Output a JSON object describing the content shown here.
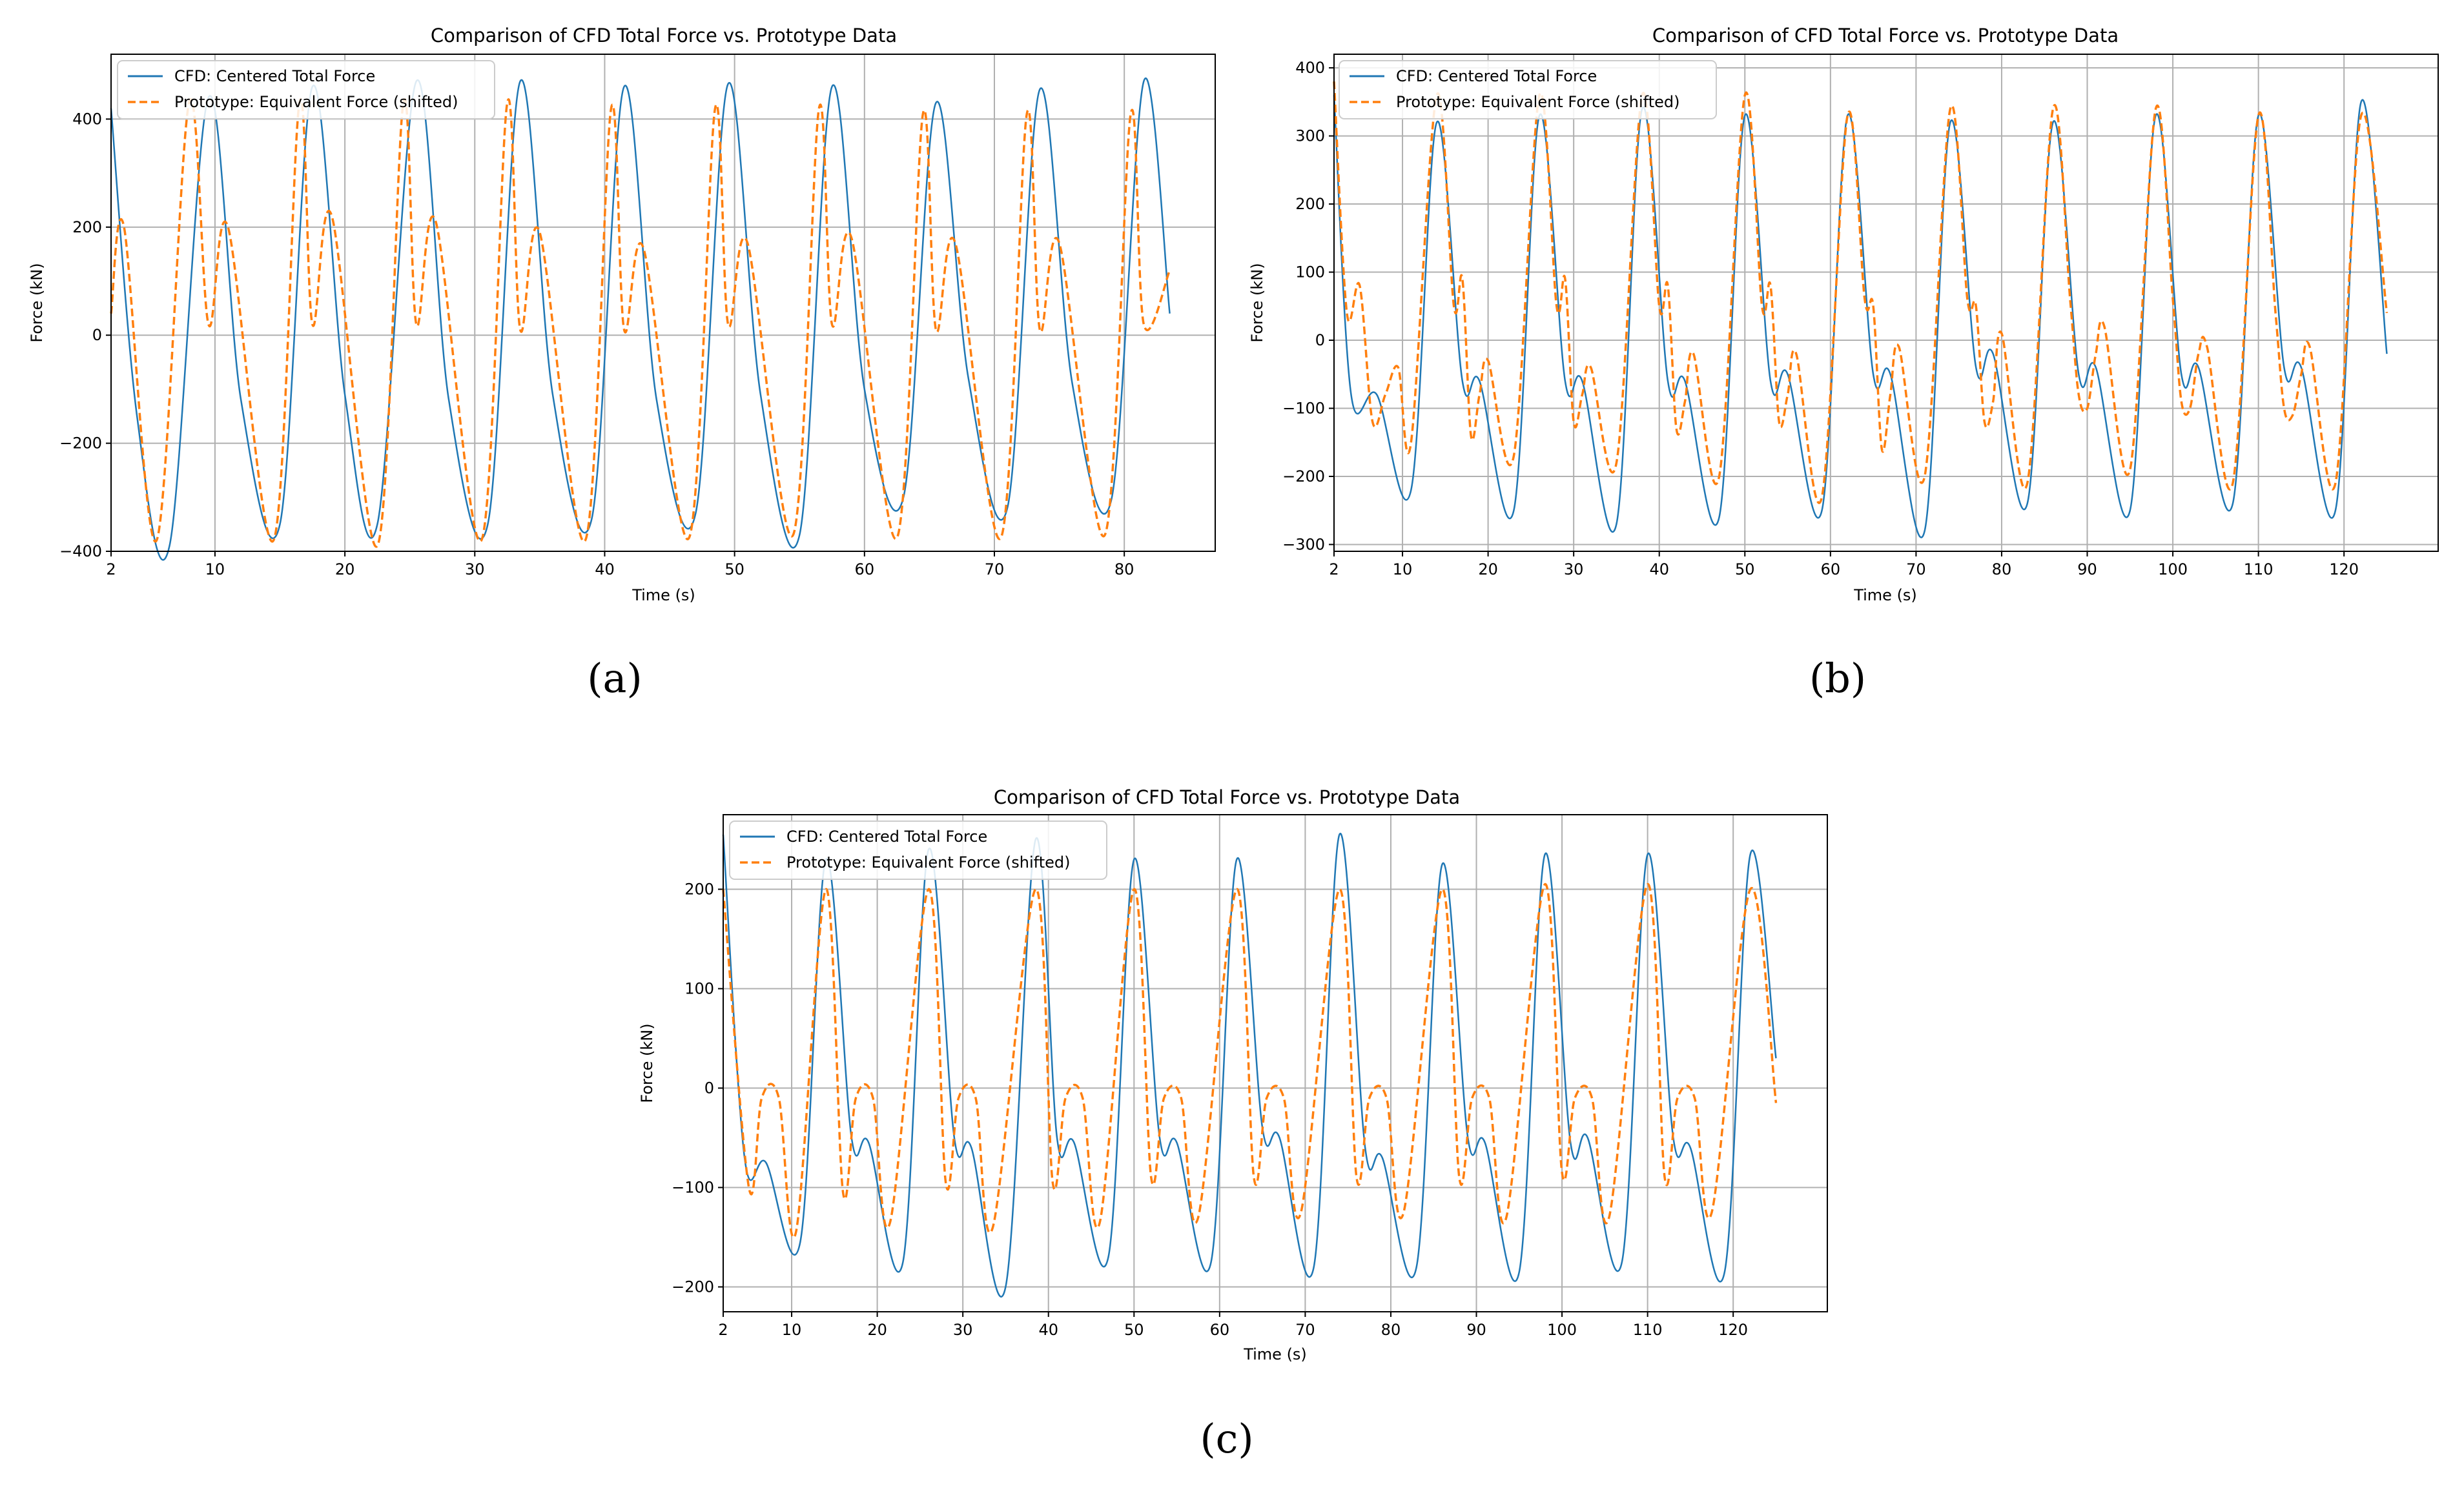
{
  "figure": {
    "captions": [
      "(a)",
      "(b)",
      "(c)"
    ]
  },
  "colors": {
    "cfd": "#1f77b4",
    "prototype": "#ff7f0e",
    "grid": "#b0b0b0"
  },
  "chart_data": [
    {
      "id": "a",
      "type": "line",
      "title": "Comparison of CFD Total Force vs. Prototype Data",
      "xlabel": "Time (s)",
      "ylabel": "Force (kN)",
      "xlim": [
        2,
        87
      ],
      "ylim": [
        -400,
        520
      ],
      "xticks": [
        2,
        10,
        20,
        30,
        40,
        50,
        60,
        70,
        80
      ],
      "yticks": [
        -400,
        -200,
        0,
        200,
        400
      ],
      "grid": true,
      "legend_position": "upper-left",
      "series": [
        {
          "name": "CFD: Centered Total Force",
          "style": "solid",
          "x": [
            2,
            4,
            6.5,
            9.5,
            12,
            15,
            17.5,
            20,
            22.5,
            25.5,
            28,
            31,
            33.5,
            36,
            39,
            41.5,
            44,
            47,
            49.5,
            52,
            55,
            57.5,
            60,
            63,
            65.5,
            68,
            71,
            73.5,
            76,
            79,
            81.5,
            83.5
          ],
          "values": [
            420,
            -150,
            -390,
            440,
            -120,
            -350,
            460,
            -110,
            -350,
            470,
            -120,
            -350,
            470,
            -110,
            -340,
            460,
            -120,
            -330,
            465,
            -110,
            -370,
            460,
            -100,
            -300,
            430,
            -80,
            -320,
            455,
            -90,
            -305,
            470,
            40
          ]
        },
        {
          "name": "Prototype: Equivalent Force (shifted)",
          "style": "dashed",
          "x": [
            2,
            3,
            5.5,
            8,
            9.5,
            11,
            14.5,
            16.5,
            17.5,
            19,
            22.5,
            24.5,
            25.5,
            27,
            30.5,
            32.5,
            33.5,
            35,
            38.5,
            40.5,
            41.5,
            43,
            46.5,
            48.5,
            49.5,
            51,
            54.5,
            56.5,
            57.5,
            59,
            62.5,
            64.5,
            65.5,
            67,
            70.5,
            72.5,
            73.5,
            75,
            78.5,
            80.5,
            81.5,
            83.5
          ],
          "values": [
            40,
            200,
            -380,
            430,
            20,
            200,
            -380,
            430,
            20,
            220,
            -390,
            430,
            20,
            210,
            -380,
            430,
            10,
            190,
            -380,
            420,
            10,
            160,
            -375,
            420,
            20,
            170,
            -370,
            420,
            20,
            180,
            -375,
            410,
            10,
            170,
            -375,
            410,
            10,
            170,
            -370,
            410,
            20,
            120
          ]
        }
      ]
    },
    {
      "id": "b",
      "type": "line",
      "title": "Comparison of CFD Total Force vs. Prototype Data",
      "xlabel": "Time (s)",
      "ylabel": "Force (kN)",
      "xlim": [
        2,
        131
      ],
      "ylim": [
        -310,
        420
      ],
      "xticks": [
        2,
        10,
        20,
        30,
        40,
        50,
        60,
        70,
        80,
        90,
        100,
        110,
        120
      ],
      "yticks": [
        -300,
        -200,
        -100,
        0,
        100,
        200,
        300,
        400
      ],
      "grid": true,
      "legend_position": "upper-left",
      "series": [
        {
          "name": "CFD: Centered Total Force",
          "style": "solid",
          "x": [
            2,
            4,
            7,
            11,
            14,
            17,
            19,
            23,
            26,
            29,
            31,
            35,
            38,
            41,
            43,
            47,
            50,
            53,
            55,
            59,
            62,
            65,
            67,
            71,
            74,
            77,
            79,
            83,
            86,
            89,
            91,
            95,
            98,
            101,
            103,
            107,
            110,
            113,
            115,
            119,
            122,
            125
          ],
          "values": [
            360,
            -80,
            -80,
            -220,
            320,
            -60,
            -60,
            -250,
            330,
            -60,
            -60,
            -270,
            340,
            -60,
            -60,
            -260,
            330,
            -60,
            -50,
            -250,
            330,
            -50,
            -50,
            -280,
            320,
            -40,
            -20,
            -240,
            320,
            -50,
            -40,
            -250,
            330,
            -50,
            -40,
            -240,
            330,
            -40,
            -40,
            -250,
            350,
            -20
          ]
        },
        {
          "name": "Prototype: Equivalent Force (shifted)",
          "style": "dashed",
          "x": [
            2,
            3.5,
            5,
            6.5,
            8,
            9.5,
            11,
            14,
            16,
            17,
            18,
            19,
            20,
            23,
            26,
            28,
            29,
            30,
            31,
            32,
            35,
            38,
            40,
            41,
            42,
            43,
            44,
            47,
            50,
            52,
            53,
            54,
            55,
            56,
            59,
            62,
            64,
            65,
            66,
            67,
            68,
            71,
            74,
            76,
            77,
            78,
            79,
            80,
            83,
            86,
            88,
            89,
            90,
            91,
            92,
            95,
            98,
            100,
            101,
            102,
            103,
            104,
            107,
            110,
            112,
            113,
            114,
            115,
            116,
            119,
            122,
            125
          ],
          "values": [
            380,
            40,
            80,
            -120,
            -80,
            -40,
            -150,
            360,
            50,
            90,
            -140,
            -80,
            -30,
            -170,
            360,
            50,
            90,
            -120,
            -80,
            -40,
            -180,
            360,
            50,
            80,
            -130,
            -90,
            -20,
            -200,
            360,
            50,
            80,
            -120,
            -80,
            -20,
            -230,
            330,
            60,
            50,
            -160,
            -80,
            -10,
            -200,
            340,
            60,
            50,
            -120,
            -90,
            10,
            -210,
            340,
            60,
            -80,
            -100,
            -20,
            20,
            -190,
            340,
            60,
            -90,
            -100,
            -20,
            -10,
            -210,
            330,
            40,
            -100,
            -110,
            -50,
            -10,
            -210,
            330,
            40
          ]
        }
      ]
    },
    {
      "id": "c",
      "type": "line",
      "title": "Comparison of CFD Total Force vs. Prototype Data",
      "xlabel": "Time (s)",
      "ylabel": "Force (kN)",
      "xlim": [
        2,
        131
      ],
      "ylim": [
        -225,
        275
      ],
      "xticks": [
        2,
        10,
        20,
        30,
        40,
        50,
        60,
        70,
        80,
        90,
        100,
        110,
        120
      ],
      "yticks": [
        -200,
        -100,
        0,
        100,
        200
      ],
      "grid": true,
      "legend_position": "upper-left",
      "series": [
        {
          "name": "CFD: Centered Total Force",
          "style": "solid",
          "x": [
            2,
            4.5,
            7,
            11,
            14,
            17,
            19,
            23,
            26,
            29,
            31,
            35,
            38.5,
            41,
            43,
            47,
            50,
            53,
            55,
            59,
            62,
            65,
            67,
            71,
            74,
            77,
            79,
            83,
            86,
            89,
            91,
            95,
            98,
            101,
            103,
            107,
            110,
            113,
            115,
            119,
            122,
            125
          ],
          "values": [
            255,
            -70,
            -75,
            -155,
            230,
            -50,
            -55,
            -175,
            240,
            -50,
            -60,
            -200,
            250,
            -50,
            -55,
            -170,
            230,
            -50,
            -55,
            -175,
            230,
            -40,
            -50,
            -180,
            255,
            -60,
            -70,
            -180,
            225,
            -50,
            -55,
            -185,
            235,
            -55,
            -50,
            -175,
            235,
            -50,
            -60,
            -185,
            235,
            30
          ]
        },
        {
          "name": "Prototype: Equivalent Force (shifted)",
          "style": "dashed",
          "x": [
            2,
            5,
            6.5,
            8.5,
            10.5,
            14,
            16,
            17.5,
            19.5,
            21.5,
            26,
            28,
            29.5,
            31.5,
            33.5,
            38.5,
            40.5,
            42,
            44,
            46,
            50,
            52,
            53.5,
            55.5,
            57.5,
            62,
            64,
            65.5,
            67.5,
            69.5,
            74,
            76,
            77.5,
            79.5,
            81.5,
            86,
            88,
            89.5,
            91.5,
            93.5,
            98,
            100,
            101.5,
            103.5,
            105.5,
            110,
            112,
            113.5,
            115.5,
            117.5,
            122,
            125
          ],
          "values": [
            200,
            -100,
            -10,
            -10,
            -145,
            200,
            -105,
            -10,
            -10,
            -135,
            200,
            -95,
            -10,
            -10,
            -140,
            200,
            -95,
            -10,
            -10,
            -135,
            200,
            -90,
            -10,
            -10,
            -130,
            200,
            -90,
            -10,
            -10,
            -125,
            200,
            -90,
            -10,
            -10,
            -125,
            200,
            -90,
            -10,
            -10,
            -130,
            205,
            -85,
            -10,
            -10,
            -130,
            205,
            -90,
            -10,
            -10,
            -125,
            200,
            -15
          ]
        }
      ]
    }
  ]
}
